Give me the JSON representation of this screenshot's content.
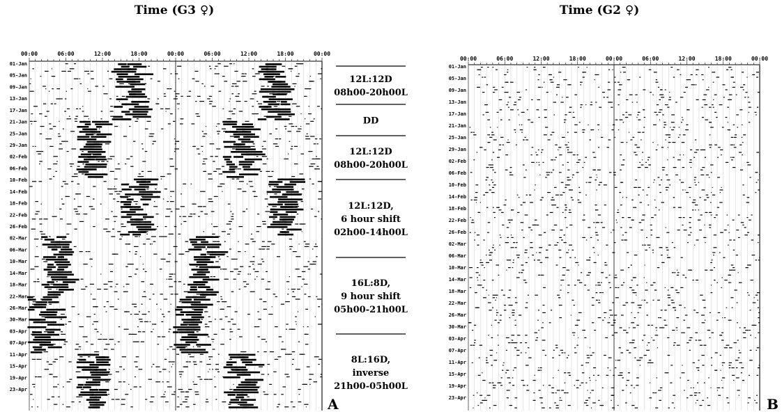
{
  "panel_a": {
    "title": "Time (G3 ♀)",
    "time_ticks": [
      "00:00",
      "06:00",
      "12:00",
      "18:00",
      "00:00",
      "06:00",
      "12:00",
      "18:00",
      "00:00"
    ],
    "dates": [
      "01-Jan",
      "05-Jan",
      "09-Jan",
      "13-Jan",
      "17-Jan",
      "21-Jan",
      "25-Jan",
      "29-Jan",
      "02-Feb",
      "06-Feb",
      "10-Feb",
      "14-Feb",
      "18-Feb",
      "22-Feb",
      "26-Feb",
      "02-Mar",
      "06-Mar",
      "10-Mar",
      "14-Mar",
      "18-Mar",
      "22-Mar",
      "26-Mar",
      "30-Mar",
      "03-Apr",
      "07-Apr",
      "11-Apr",
      "15-Apr",
      "19-Apr",
      "23-Apr"
    ],
    "label": "A"
  },
  "panel_b": {
    "title": "Time (G2 ♀)",
    "time_ticks": [
      "00:00",
      "06:00",
      "12:00",
      "18:00",
      "00:00",
      "06:00",
      "12:00",
      "18:00",
      "00:00"
    ],
    "dates": [
      "01-Jan",
      "05-Jan",
      "09-Jan",
      "13-Jan",
      "17-Jan",
      "21-Jan",
      "25-Jan",
      "29-Jan",
      "02-Feb",
      "06-Feb",
      "10-Feb",
      "14-Feb",
      "18-Feb",
      "22-Feb",
      "26-Feb",
      "02-Mar",
      "06-Mar",
      "10-Mar",
      "14-Mar",
      "18-Mar",
      "22-Mar",
      "26-Mar",
      "30-Mar",
      "03-Apr",
      "07-Apr",
      "11-Apr",
      "15-Apr",
      "19-Apr",
      "23-Apr"
    ],
    "label": "B"
  },
  "conditions": [
    {
      "lines": [
        "12L:12D",
        "08h00-20h00L"
      ]
    },
    {
      "lines": [
        "DD"
      ]
    },
    {
      "lines": [
        "12L:12D",
        "08h00-20h00L"
      ]
    },
    {
      "lines": [
        "12L:12D,",
        "6 hour shift",
        "02h00-14h00L"
      ]
    },
    {
      "lines": [
        "16L:8D,",
        "9 hour shift",
        "05h00-21h00L"
      ]
    },
    {
      "lines": [
        "8L:16D,",
        "inverse",
        "21h00-05h00L"
      ]
    }
  ]
}
